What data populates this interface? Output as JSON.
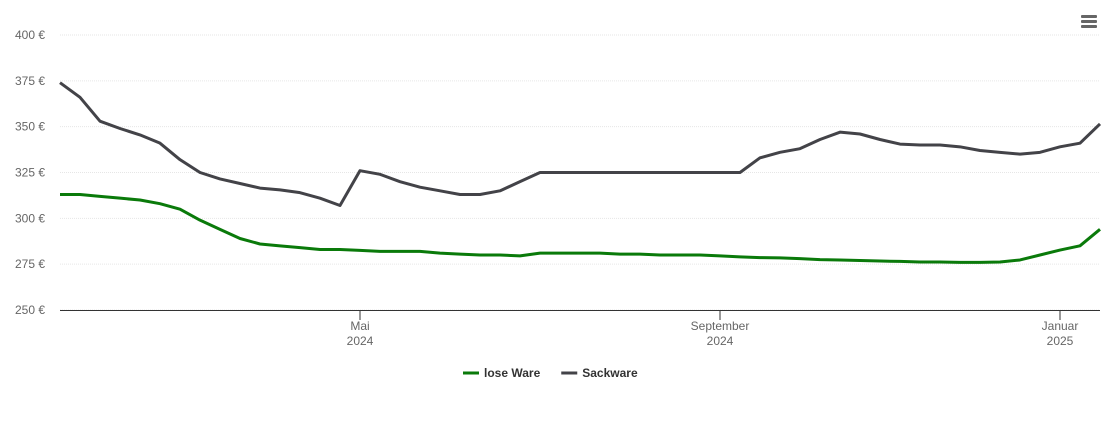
{
  "chart_data": {
    "type": "line",
    "categories": [
      null,
      null,
      null,
      null,
      null,
      null,
      null,
      null,
      null,
      null,
      null,
      null,
      null,
      null,
      null,
      null,
      null,
      null,
      null,
      null,
      null,
      null,
      null,
      null,
      null,
      null,
      null,
      null,
      null,
      null,
      null,
      null,
      null,
      null,
      null,
      null,
      null,
      null,
      null,
      null,
      null,
      null,
      null,
      null,
      null,
      null,
      null,
      null,
      null,
      null,
      null,
      null,
      null
    ],
    "xticks": [
      {
        "value": 15,
        "label": [
          "Mai",
          "2024"
        ]
      },
      {
        "value": 33,
        "label": [
          "September",
          "2024"
        ]
      },
      {
        "value": 50,
        "label": [
          "Januar",
          "2025"
        ]
      }
    ],
    "ylim": [
      250,
      400
    ],
    "yticks": [
      {
        "value": 250,
        "label": "250 €"
      },
      {
        "value": 275,
        "label": "275 €"
      },
      {
        "value": 300,
        "label": "300 €"
      },
      {
        "value": 325,
        "label": "325 €"
      },
      {
        "value": 350,
        "label": "350 €"
      },
      {
        "value": 375,
        "label": "375 €"
      },
      {
        "value": 400,
        "label": "400 €"
      }
    ],
    "grid": true,
    "legend": "bottom",
    "series": [
      {
        "name": "lose Ware",
        "color": "#0a7a0a",
        "values": [
          313,
          313,
          312,
          311,
          310,
          308,
          305,
          299,
          294,
          289,
          286,
          285,
          284,
          283,
          283,
          282.5,
          282,
          282,
          282,
          281,
          280.5,
          280,
          280,
          279.5,
          281,
          281,
          281,
          281,
          280.5,
          280.5,
          280,
          280,
          280,
          279.5,
          279,
          278.6,
          278.4,
          278,
          277.5,
          277.3,
          277,
          276.7,
          276.5,
          276.2,
          276.2,
          276,
          276,
          276.2,
          277.3,
          280,
          282.7,
          285,
          294
        ]
      },
      {
        "name": "Sackware",
        "color": "#434348",
        "values": [
          374,
          366,
          353,
          349,
          345.5,
          341,
          332,
          325,
          321.5,
          319,
          316.5,
          315.5,
          314,
          311,
          307,
          326,
          324,
          320,
          317,
          315,
          313,
          313,
          315,
          320,
          325,
          325,
          325,
          325,
          325,
          325,
          325,
          325,
          325,
          325,
          325,
          333,
          336,
          338,
          343,
          347,
          346,
          343,
          340.5,
          340,
          340,
          339,
          337,
          336,
          335,
          336,
          339,
          341,
          351.5
        ]
      }
    ]
  }
}
